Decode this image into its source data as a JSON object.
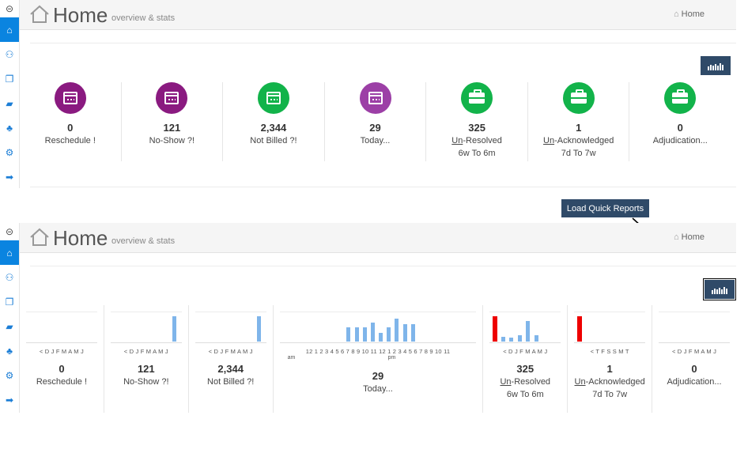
{
  "header": {
    "title": "Home",
    "subtitle": "overview & stats",
    "breadcrumb": "Home"
  },
  "sidebar": {
    "items": [
      {
        "icon": "circle-arrow-left-icon",
        "glyph": "⊝"
      },
      {
        "icon": "home-icon",
        "glyph": "⌂"
      },
      {
        "icon": "users-icon",
        "glyph": "⚇"
      },
      {
        "icon": "book-icon",
        "glyph": "❐"
      },
      {
        "icon": "briefcase-icon",
        "glyph": "▰"
      },
      {
        "icon": "sitemap-icon",
        "glyph": "♣"
      },
      {
        "icon": "gear-icon",
        "glyph": "⚙"
      },
      {
        "icon": "sign-out-icon",
        "glyph": "➡"
      }
    ]
  },
  "tooltip": "Load Quick Reports",
  "colors": {
    "purple_dark": "#8a1a80",
    "purple_light": "#9c3fa6",
    "green": "#12b34a",
    "accent_blue": "#0a84e0",
    "button_navy": "#2f4a68",
    "bar_blue": "#7fb5ea",
    "bar_red": "#e00000"
  },
  "stats": [
    {
      "value": "0",
      "label": "Reschedule !",
      "icon": "calendar-icon",
      "color": "#8a1a80"
    },
    {
      "value": "121",
      "label": "No-Show ?!",
      "icon": "calendar-icon",
      "color": "#8a1a80"
    },
    {
      "value": "2,344",
      "label": "Not Billed ?!",
      "icon": "calendar-icon",
      "color": "#12b34a"
    },
    {
      "value": "29",
      "label": "Today...",
      "icon": "calendar-icon",
      "color": "#9c3fa6"
    },
    {
      "value": "325",
      "label_u": "Un",
      "label_rest": "-Resolved",
      "sub": "6w To 6m",
      "icon": "briefcase-icon",
      "color": "#12b34a"
    },
    {
      "value": "1",
      "label_u": "Un",
      "label_rest": "-Acknowledged",
      "sub": "7d To 7w",
      "icon": "briefcase-icon",
      "color": "#12b34a"
    },
    {
      "value": "0",
      "label": "Adjudication...",
      "icon": "briefcase-icon",
      "color": "#12b34a"
    }
  ],
  "mini_charts": [
    {
      "ticks": "< D J F M A M J",
      "values": [
        0,
        0,
        0,
        0,
        0,
        0,
        0,
        0
      ]
    },
    {
      "ticks": "< D J F M A M J",
      "values": [
        0,
        0,
        0,
        0,
        0,
        0,
        0,
        1
      ]
    },
    {
      "ticks": "< D J F M A M J",
      "values": [
        0,
        0,
        0,
        0,
        0,
        0,
        0,
        1
      ]
    },
    {
      "ticks": "12 1 2 3 4 5 6 7 8 9 10 11 12 1 2 3 4 5 6 7 8 9 10 11",
      "am": "am",
      "pm": "pm",
      "values": [
        0,
        0,
        0,
        0,
        0,
        0,
        0,
        0,
        0.55,
        0.55,
        0.55,
        0.75,
        0.35,
        0.55,
        0.9,
        0.7,
        0.7,
        0,
        0,
        0,
        0,
        0,
        0,
        0
      ]
    },
    {
      "ticks": "< D J F M A M J",
      "values": [
        1,
        0.2,
        0.15,
        0.25,
        0.8,
        0.25,
        0,
        0
      ],
      "red": [
        0
      ]
    },
    {
      "ticks": "< T F S S M T",
      "values": [
        1,
        0,
        0,
        0,
        0,
        0,
        0
      ],
      "red": [
        0
      ]
    },
    {
      "ticks": "< D J F M A M J",
      "values": [
        0,
        0,
        0,
        0,
        0,
        0,
        0,
        0
      ]
    }
  ]
}
